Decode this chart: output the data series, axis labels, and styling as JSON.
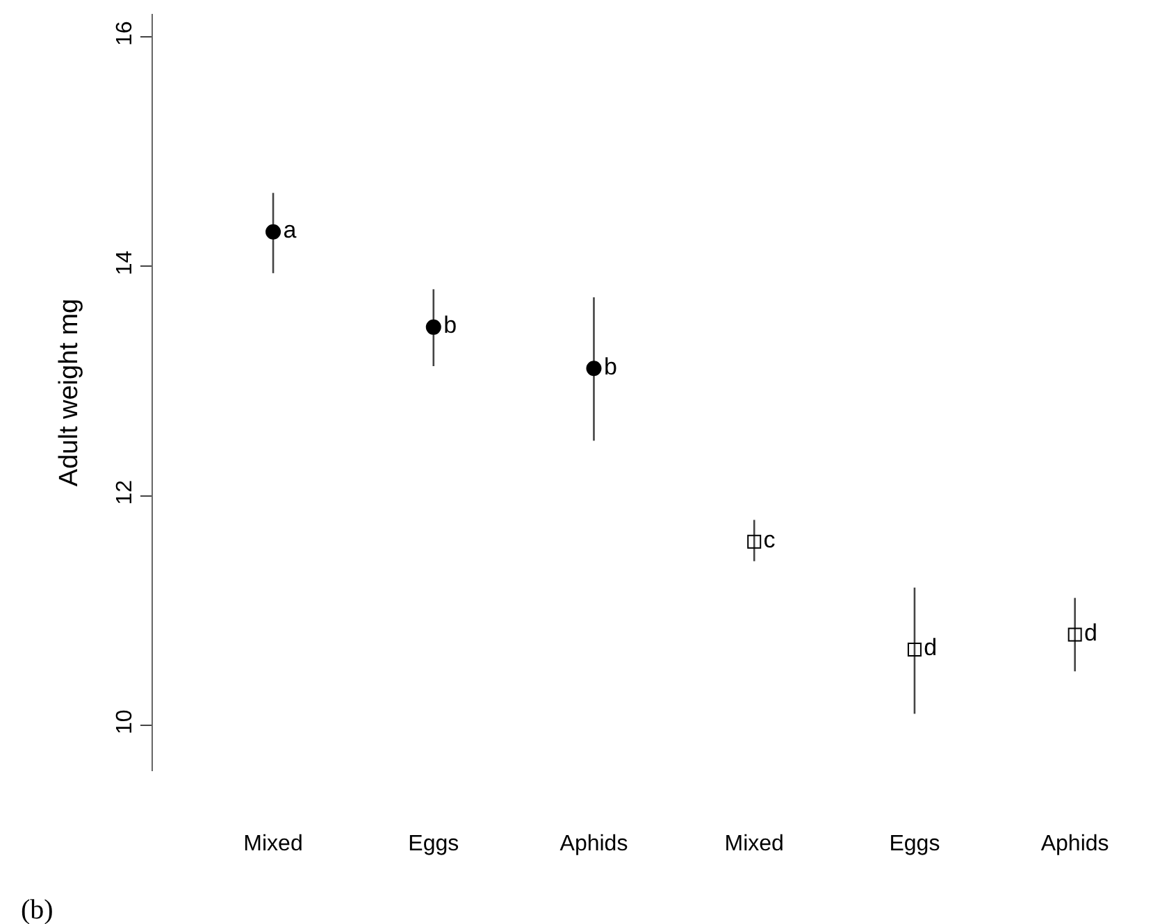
{
  "chart_data": {
    "type": "scatter",
    "ylabel": "Adult weight mg",
    "categories": [
      "Mixed",
      "Eggs",
      "Aphids",
      "Mixed",
      "Eggs",
      "Aphids"
    ],
    "ylim": [
      9.6,
      16.2
    ],
    "yticks": [
      10,
      12,
      14,
      16
    ],
    "grid": false,
    "series": [
      {
        "color": "#000000",
        "marker": "circle",
        "values": [
          14.3,
          13.47,
          13.11,
          null,
          null,
          null
        ],
        "errors": [
          [
            13.94,
            14.64
          ],
          [
            13.13,
            13.8
          ],
          [
            12.48,
            13.73
          ],
          null,
          null,
          null
        ],
        "value_labels": [
          "a",
          "b",
          "b",
          null,
          null,
          null
        ]
      },
      {
        "color": "#000000",
        "marker": "square",
        "values": [
          null,
          null,
          null,
          11.6,
          10.66,
          10.79
        ],
        "errors": [
          null,
          null,
          null,
          [
            11.43,
            11.79
          ],
          [
            10.1,
            11.2
          ],
          [
            10.47,
            11.11
          ]
        ],
        "value_labels": [
          null,
          null,
          null,
          "c",
          "d",
          "d"
        ]
      }
    ],
    "annotations": [
      "(b)"
    ]
  }
}
